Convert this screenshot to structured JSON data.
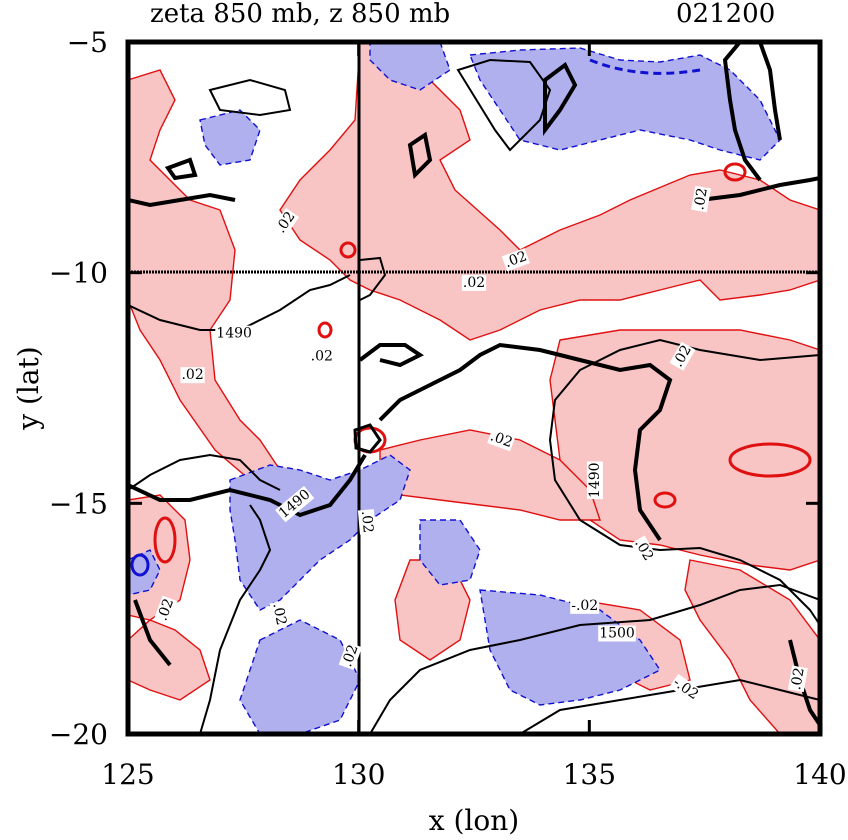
{
  "chart_data": {
    "type": "contour",
    "title": "zeta 850 mb, z 850 mb",
    "timestamp": "021200",
    "xlabel": "x (lon)",
    "ylabel": "y (lat)",
    "xlim": [
      125,
      140
    ],
    "ylim": [
      -20,
      -5
    ],
    "xticks": [
      {
        "value": 125,
        "label": "125"
      },
      {
        "value": 130,
        "label": "130"
      },
      {
        "value": 135,
        "label": "135"
      },
      {
        "value": 140,
        "label": "140"
      }
    ],
    "yticks": [
      {
        "value": -5,
        "label": "−5"
      },
      {
        "value": -10,
        "label": "−10"
      },
      {
        "value": -15,
        "label": "−15"
      },
      {
        "value": -20,
        "label": "−20"
      }
    ],
    "reference_lines": {
      "lon": 130,
      "lat": -10
    },
    "contour_labels": [
      {
        "text": ".02",
        "lon": 128.4,
        "lat": -8.9,
        "rot": -55
      },
      {
        "text": ".02",
        "lon": 133.4,
        "lat": -9.7,
        "rot": -20
      },
      {
        "text": ".02",
        "lon": 132.5,
        "lat": -10.2,
        "rot": 0
      },
      {
        "text": ".02",
        "lon": 129.2,
        "lat": -11.8,
        "rot": 0
      },
      {
        "text": ".02",
        "lon": 126.4,
        "lat": -12.2,
        "rot": 0
      },
      {
        "text": ".02",
        "lon": 133.1,
        "lat": -13.6,
        "rot": 20
      },
      {
        "text": ".02",
        "lon": 137.0,
        "lat": -11.8,
        "rot": -60
      },
      {
        "text": ".02",
        "lon": 137.4,
        "lat": -8.4,
        "rot": -80
      },
      {
        "text": "1490",
        "lon": 127.3,
        "lat": -11.3,
        "rot": 0
      },
      {
        "text": "1490",
        "lon": 135.1,
        "lat": -14.5,
        "rot": -90
      },
      {
        "text": "1490",
        "lon": 128.6,
        "lat": -15.0,
        "rot": -40
      },
      {
        "text": ".02",
        "lon": 130.2,
        "lat": -15.4,
        "rot": 85
      },
      {
        "text": ".02",
        "lon": 136.2,
        "lat": -16.0,
        "rot": 60
      },
      {
        "text": ".02",
        "lon": 125.8,
        "lat": -17.3,
        "rot": -70
      },
      {
        "text": ".02",
        "lon": 128.3,
        "lat": -17.4,
        "rot": 80
      },
      {
        "text": "-.02",
        "lon": 134.9,
        "lat": -17.2,
        "rot": 0
      },
      {
        "text": "1500",
        "lon": 135.6,
        "lat": -17.8,
        "rot": 0
      },
      {
        "text": ".02",
        "lon": 129.8,
        "lat": -18.3,
        "rot": -70
      },
      {
        "text": "-.02",
        "lon": 137.1,
        "lat": -19.0,
        "rot": 35
      },
      {
        "text": ".02",
        "lon": 139.5,
        "lat": -18.8,
        "rot": -80
      }
    ],
    "legend": "none"
  }
}
